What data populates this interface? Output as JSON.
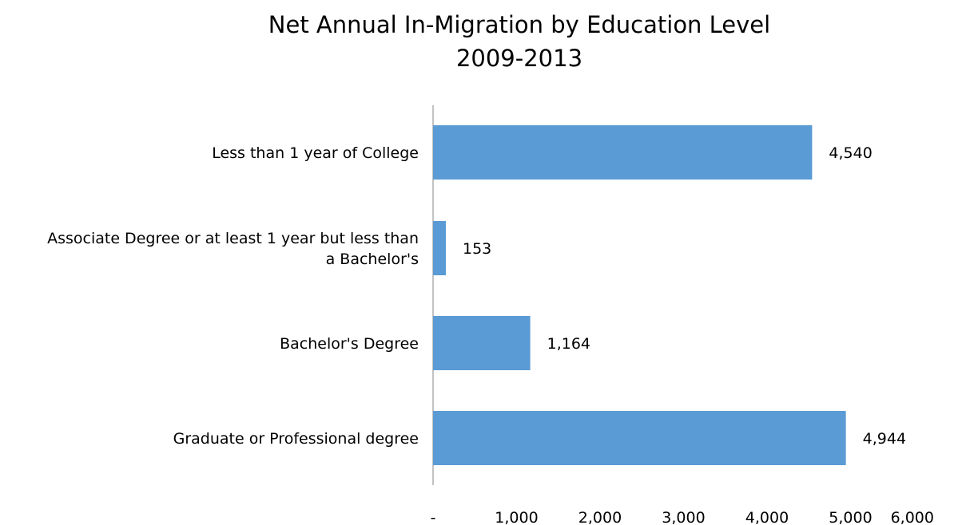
{
  "chart_data": {
    "type": "bar",
    "orientation": "horizontal",
    "title": "Net Annual In-Migration by Education Level",
    "subtitle": "2009-2013",
    "categories": [
      [
        "Less than 1 year of College"
      ],
      [
        "Associate Degree or at least 1 year but less than",
        "a Bachelor's"
      ],
      [
        "Bachelor's Degree"
      ],
      [
        "Graduate or Professional degree"
      ]
    ],
    "values": [
      4540,
      153,
      1164,
      4944
    ],
    "value_labels": [
      "4,540",
      "153",
      "1,164",
      "4,944"
    ],
    "xlim": [
      0,
      6000
    ],
    "x_ticks": [
      0,
      1000,
      2000,
      3000,
      4000,
      5000,
      6000
    ],
    "x_tick_labels": [
      "-",
      "1,000",
      "2,000",
      "3,000",
      "4,000",
      "5,000",
      "6,000"
    ],
    "grid": false,
    "legend": "none",
    "bar_color": "#5B9BD5",
    "axis_color": "#868686"
  }
}
